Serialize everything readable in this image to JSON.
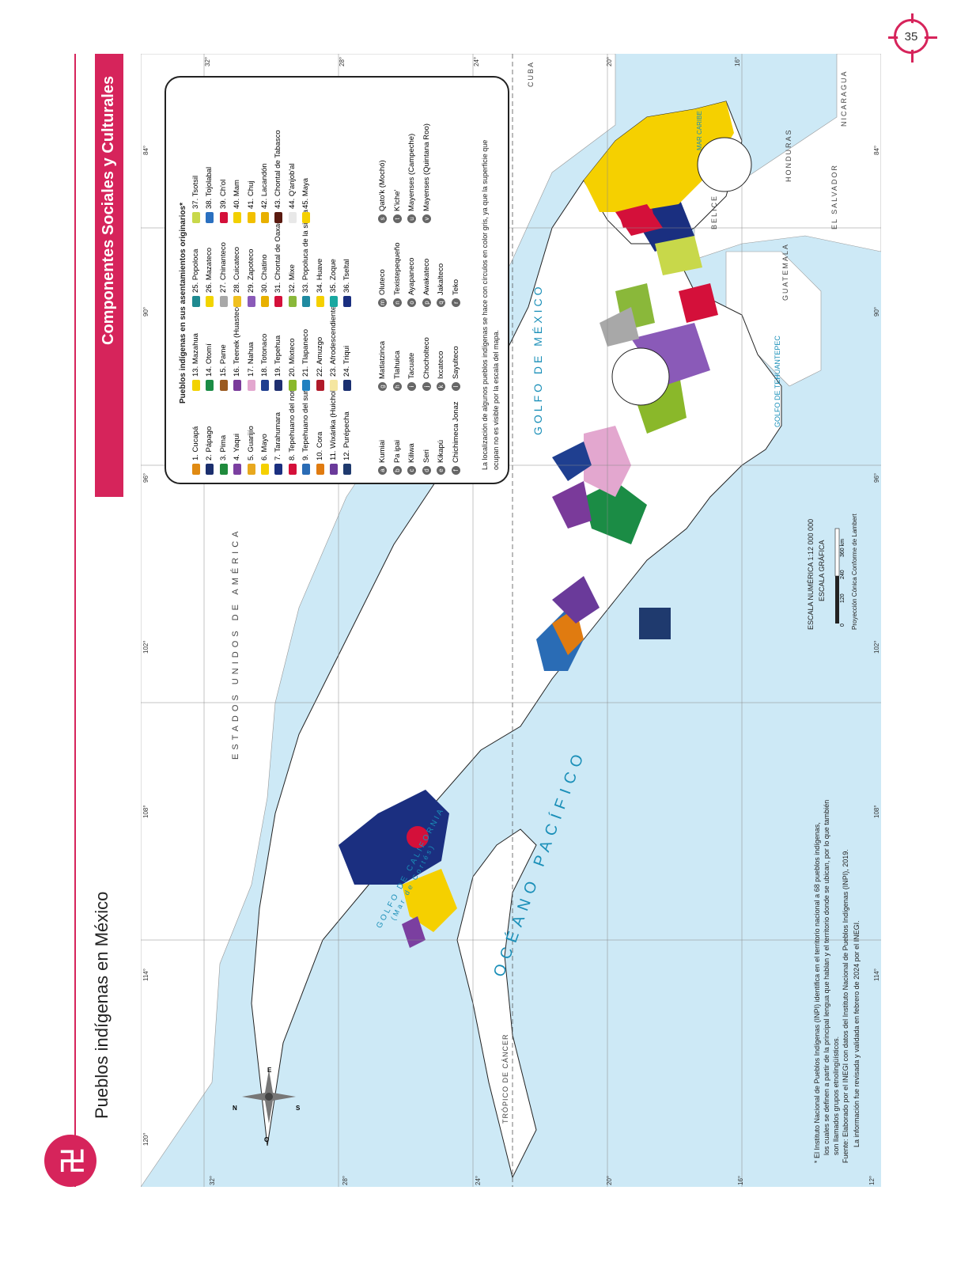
{
  "page": {
    "number": "35",
    "title": "Pueblos indígenas en México",
    "section": "Componentes Sociales y Culturales"
  },
  "legend": {
    "heading": "Pueblos indígenas en sus asentamientos originarios*",
    "groups": [
      {
        "label": "1. Cucapá",
        "color": "#e08a12"
      },
      {
        "label": "2. Pápago",
        "color": "#1b2f6e"
      },
      {
        "label": "3. Pima",
        "color": "#1f8a3c"
      },
      {
        "label": "4. Yaqui",
        "color": "#7b3fa0"
      },
      {
        "label": "5. Guarijío",
        "color": "#e8a81e"
      },
      {
        "label": "6. Mayo",
        "color": "#f5d000"
      },
      {
        "label": "7. Tarahumara",
        "color": "#1b2f80"
      },
      {
        "label": "8. Tepehuano del norte",
        "color": "#d4103a"
      },
      {
        "label": "9. Tepehuano del sur",
        "color": "#2a6cb5"
      },
      {
        "label": "10. Cora",
        "color": "#e07b10"
      },
      {
        "label": "11. Wixárika (Huichol)",
        "color": "#6a3a9a"
      },
      {
        "label": "12. Purépecha",
        "color": "#1f3a6e"
      },
      {
        "label": "13. Mazahua",
        "color": "#f2d200"
      },
      {
        "label": "14. Otomí",
        "color": "#1b8c45"
      },
      {
        "label": "15. Pame",
        "color": "#9a5a20"
      },
      {
        "label": "16. Teenek (Huasteco)",
        "color": "#7a3a9a"
      },
      {
        "label": "17. Nahua",
        "color": "#e3a7cf"
      },
      {
        "label": "18. Totonaco",
        "color": "#1f3f90"
      },
      {
        "label": "19. Tepehua",
        "color": "#1f2f70"
      },
      {
        "label": "20. Mixteco",
        "color": "#8ab82a"
      },
      {
        "label": "21. Tlapaneco",
        "color": "#2080c0"
      },
      {
        "label": "22. Amuzgo",
        "color": "#b01a2a"
      },
      {
        "label": "23. Afrodescendiente",
        "color": "#f5e6a0"
      },
      {
        "label": "24. Triqui",
        "color": "#1a2f70"
      },
      {
        "label": "25. Popoloca",
        "color": "#1f8a90"
      },
      {
        "label": "26. Mazateco",
        "color": "#f2d400"
      },
      {
        "label": "27. Chinanteco",
        "color": "#a8a8a8"
      },
      {
        "label": "28. Cuicateco",
        "color": "#f0c020"
      },
      {
        "label": "29. Zapoteco",
        "color": "#8a5ab8"
      },
      {
        "label": "30. Chatino",
        "color": "#e8b000"
      },
      {
        "label": "31. Chontal de Oaxaca",
        "color": "#d4103a"
      },
      {
        "label": "32. Mixe",
        "color": "#8ab83a"
      },
      {
        "label": "33. Popoluca de la sierra",
        "color": "#1f8aa0"
      },
      {
        "label": "34. Huave",
        "color": "#f5d000"
      },
      {
        "label": "35. Zoque",
        "color": "#1aa8a0"
      },
      {
        "label": "36. Tseltal",
        "color": "#1a2f80"
      },
      {
        "label": "37. Tsotsil",
        "color": "#c8d84a"
      },
      {
        "label": "38. Tojolabal",
        "color": "#2a70c0"
      },
      {
        "label": "39. Ch'ol",
        "color": "#d4103a"
      },
      {
        "label": "40. Mam",
        "color": "#f2d000"
      },
      {
        "label": "41. Chuj",
        "color": "#f2c000"
      },
      {
        "label": "42. Lacandón",
        "color": "#e8b000"
      },
      {
        "label": "43. Chontal de Tabasco",
        "color": "#5a1a10"
      },
      {
        "label": "44. Q'anjob'al",
        "color": "#e8e8e8"
      },
      {
        "label": "45. Maya",
        "color": "#f5d000"
      }
    ],
    "letter_groups": [
      {
        "code": "a",
        "label": "Kumiai"
      },
      {
        "code": "b",
        "label": "Pa ipai"
      },
      {
        "code": "c",
        "label": "Kiliwa"
      },
      {
        "code": "d",
        "label": "Seri"
      },
      {
        "code": "e",
        "label": "Kikapú"
      },
      {
        "code": "f",
        "label": "Chichimeca Jonaz"
      },
      {
        "code": "g",
        "label": "Matlatzinca"
      },
      {
        "code": "h",
        "label": "Tlahuica"
      },
      {
        "code": "i",
        "label": "Tacuate"
      },
      {
        "code": "j",
        "label": "Chocholteco"
      },
      {
        "code": "k",
        "label": "Ixcateco"
      },
      {
        "code": "l",
        "label": "Sayulteco"
      },
      {
        "code": "m",
        "label": "Oluteco"
      },
      {
        "code": "n",
        "label": "Texistepequeño"
      },
      {
        "code": "o",
        "label": "Ayapaneco"
      },
      {
        "code": "p",
        "label": "Awakateco"
      },
      {
        "code": "q",
        "label": "Jakalteco"
      },
      {
        "code": "r",
        "label": "Teko"
      },
      {
        "code": "s",
        "label": "Qato'k (Mochó)"
      },
      {
        "code": "t",
        "label": "K'iche'"
      },
      {
        "code": "u",
        "label": "Mayenses (Campeche)"
      },
      {
        "code": "v",
        "label": "Mayenses (Quintana Roo)"
      }
    ],
    "note_1": "La localización de algunos pueblos indígenas se hace con círculos en color gris, ya que la superficie que",
    "note_2": "ocupan no es visible por la escala del mapa."
  },
  "map_labels": {
    "usa": "ESTADOS UNIDOS DE AMÉRICA",
    "pacific": "OCÉANO PACÍFICO",
    "gulf_mexico": "GOLFO DE MÉXICO",
    "gulf_california": "GOLFO DE CALIFORNIA",
    "mar_cortes": "(Mar de Cortés)",
    "tehuantepec": "GOLFO DE TEHUANTEPEC",
    "caribe": "MAR CARIBE",
    "cuba": "CUBA",
    "belice": "BELICE",
    "guatemala": "GUATEMALA",
    "honduras": "HONDURAS",
    "el_salvador": "EL SALVADOR",
    "nicaragua": "NICARAGUA",
    "tropico": "TRÓPICO DE CÁNCER",
    "compass": {
      "n": "N",
      "s": "S",
      "e": "E",
      "o": "O"
    }
  },
  "scale": {
    "numeric": "ESCALA NUMÉRICA 1:12 000 000",
    "graphic": "ESCALA GRÁFICA",
    "ticks": [
      "0",
      "120",
      "240",
      "360 km"
    ],
    "projection": "Proyección Cónica Conforme de Lambert"
  },
  "degrees": {
    "top": [
      "32°",
      "28°",
      "24°",
      "20°",
      "16°"
    ],
    "left_top": [
      "120°",
      "114°",
      "108°",
      "102°",
      "96°",
      "90°",
      "84°"
    ],
    "bottom": [
      "32°",
      "28°",
      "24°",
      "20°",
      "16°",
      "12°"
    ],
    "right": [
      "114°",
      "108°",
      "102°",
      "96°",
      "90°",
      "84°"
    ]
  },
  "footnotes": {
    "line1": "* El Instituto Nacional de Pueblos Indígenas (INPI) identifica en el territorio nacional a 68 pueblos indígenas,",
    "line2": "los cuales se definen a partir de la principal lengua que hablan y el territorio donde se ubican, por lo que también",
    "line3": "son llamados grupos etnolingüísticos.",
    "line4": "Fuente: Elaborado por el INEGI con datos del Instituto Nacional de Pueblos Indígenas (INPI), 2019.",
    "line5": "La información fue revisada y validada en febrero de 2024 por el INEGI."
  },
  "colors": {
    "accent": "#d6245b",
    "sea": "#cde9f6",
    "land": "#ffffff",
    "border": "#222222",
    "sea_text": "#1a8fb8"
  }
}
